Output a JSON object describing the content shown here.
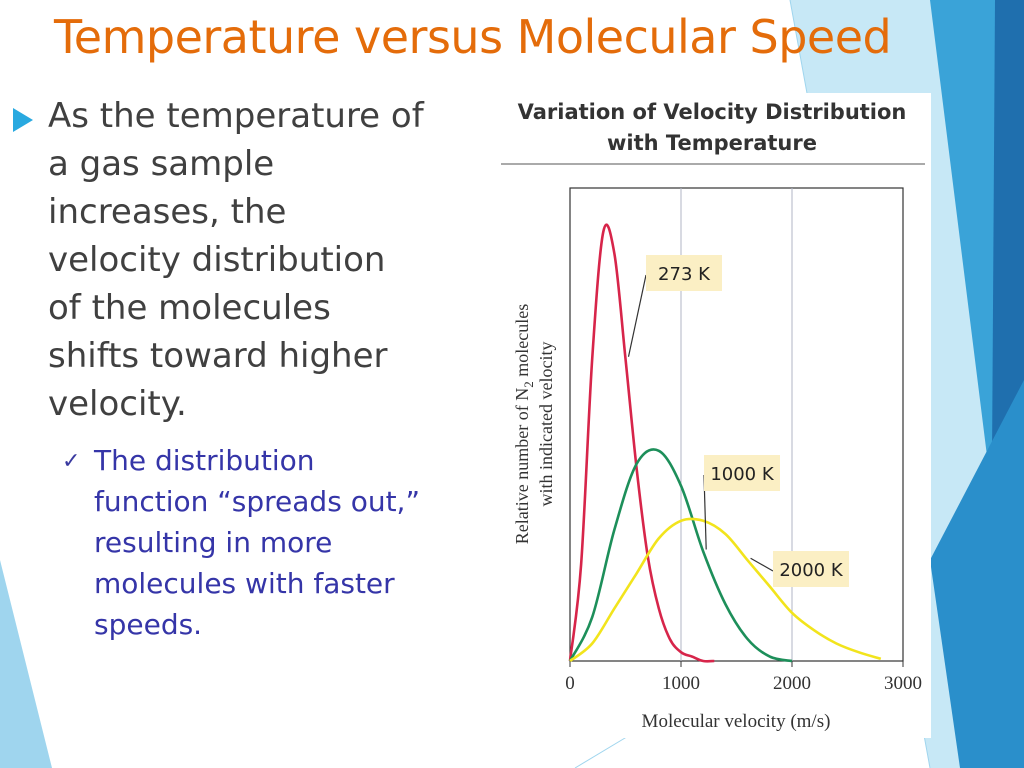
{
  "slide": {
    "title": "Temperature versus Molecular Speed",
    "bullet": "As the temperature of a gas sample increases, the velocity distribution of the molecules shifts toward higher velocity.",
    "sub_bullet": "The distribution function “spreads out,” resulting in more molecules with faster speeds."
  },
  "icons": {
    "bullet": "triangle-arrow-icon",
    "sub_bullet": "checkmark-icon"
  },
  "colors": {
    "title": "#e46c0a",
    "accent": "#29a9e0",
    "sub_text": "#3535a8",
    "series_273": "#d7254a",
    "series_1000": "#1d8f5a",
    "series_2000": "#f2e41c",
    "label_bg": "#fbefc4"
  },
  "chart_data": {
    "type": "line",
    "title": "Variation of Velocity Distribution with Temperature",
    "xlabel": "Molecular velocity (m/s)",
    "ylabel_line1_prefix": "Relative number of N",
    "ylabel_line1_sub": "2",
    "ylabel_line1_suffix": " molecules",
    "ylabel_line2": "with indicated velocity",
    "xlim": [
      0,
      3000
    ],
    "ylim": [
      0,
      1
    ],
    "x_ticks": [
      0,
      1000,
      2000,
      3000
    ],
    "x_tick_labels": [
      "0",
      "1000",
      "2000",
      "3000"
    ],
    "vertical_gridlines": [
      1000,
      2000
    ],
    "series": [
      {
        "name": "273 K",
        "x": [
          0,
          100,
          200,
          300,
          400,
          500,
          600,
          700,
          800,
          900,
          1000,
          1100,
          1200,
          1300
        ],
        "y": [
          0,
          0.22,
          0.69,
          0.98,
          0.93,
          0.69,
          0.44,
          0.24,
          0.12,
          0.05,
          0.02,
          0.01,
          0.0,
          0.0
        ]
      },
      {
        "name": "1000 K",
        "x": [
          0,
          200,
          400,
          600,
          800,
          1000,
          1200,
          1400,
          1600,
          1800,
          2000
        ],
        "y": [
          0,
          0.1,
          0.3,
          0.45,
          0.48,
          0.4,
          0.25,
          0.13,
          0.05,
          0.01,
          0.0
        ]
      },
      {
        "name": "2000 K",
        "x": [
          0,
          200,
          400,
          600,
          800,
          1000,
          1200,
          1400,
          1600,
          1800,
          2000,
          2200,
          2400,
          2600,
          2800
        ],
        "y": [
          0,
          0.04,
          0.12,
          0.2,
          0.28,
          0.32,
          0.32,
          0.29,
          0.23,
          0.17,
          0.11,
          0.07,
          0.04,
          0.02,
          0.005
        ]
      }
    ]
  }
}
